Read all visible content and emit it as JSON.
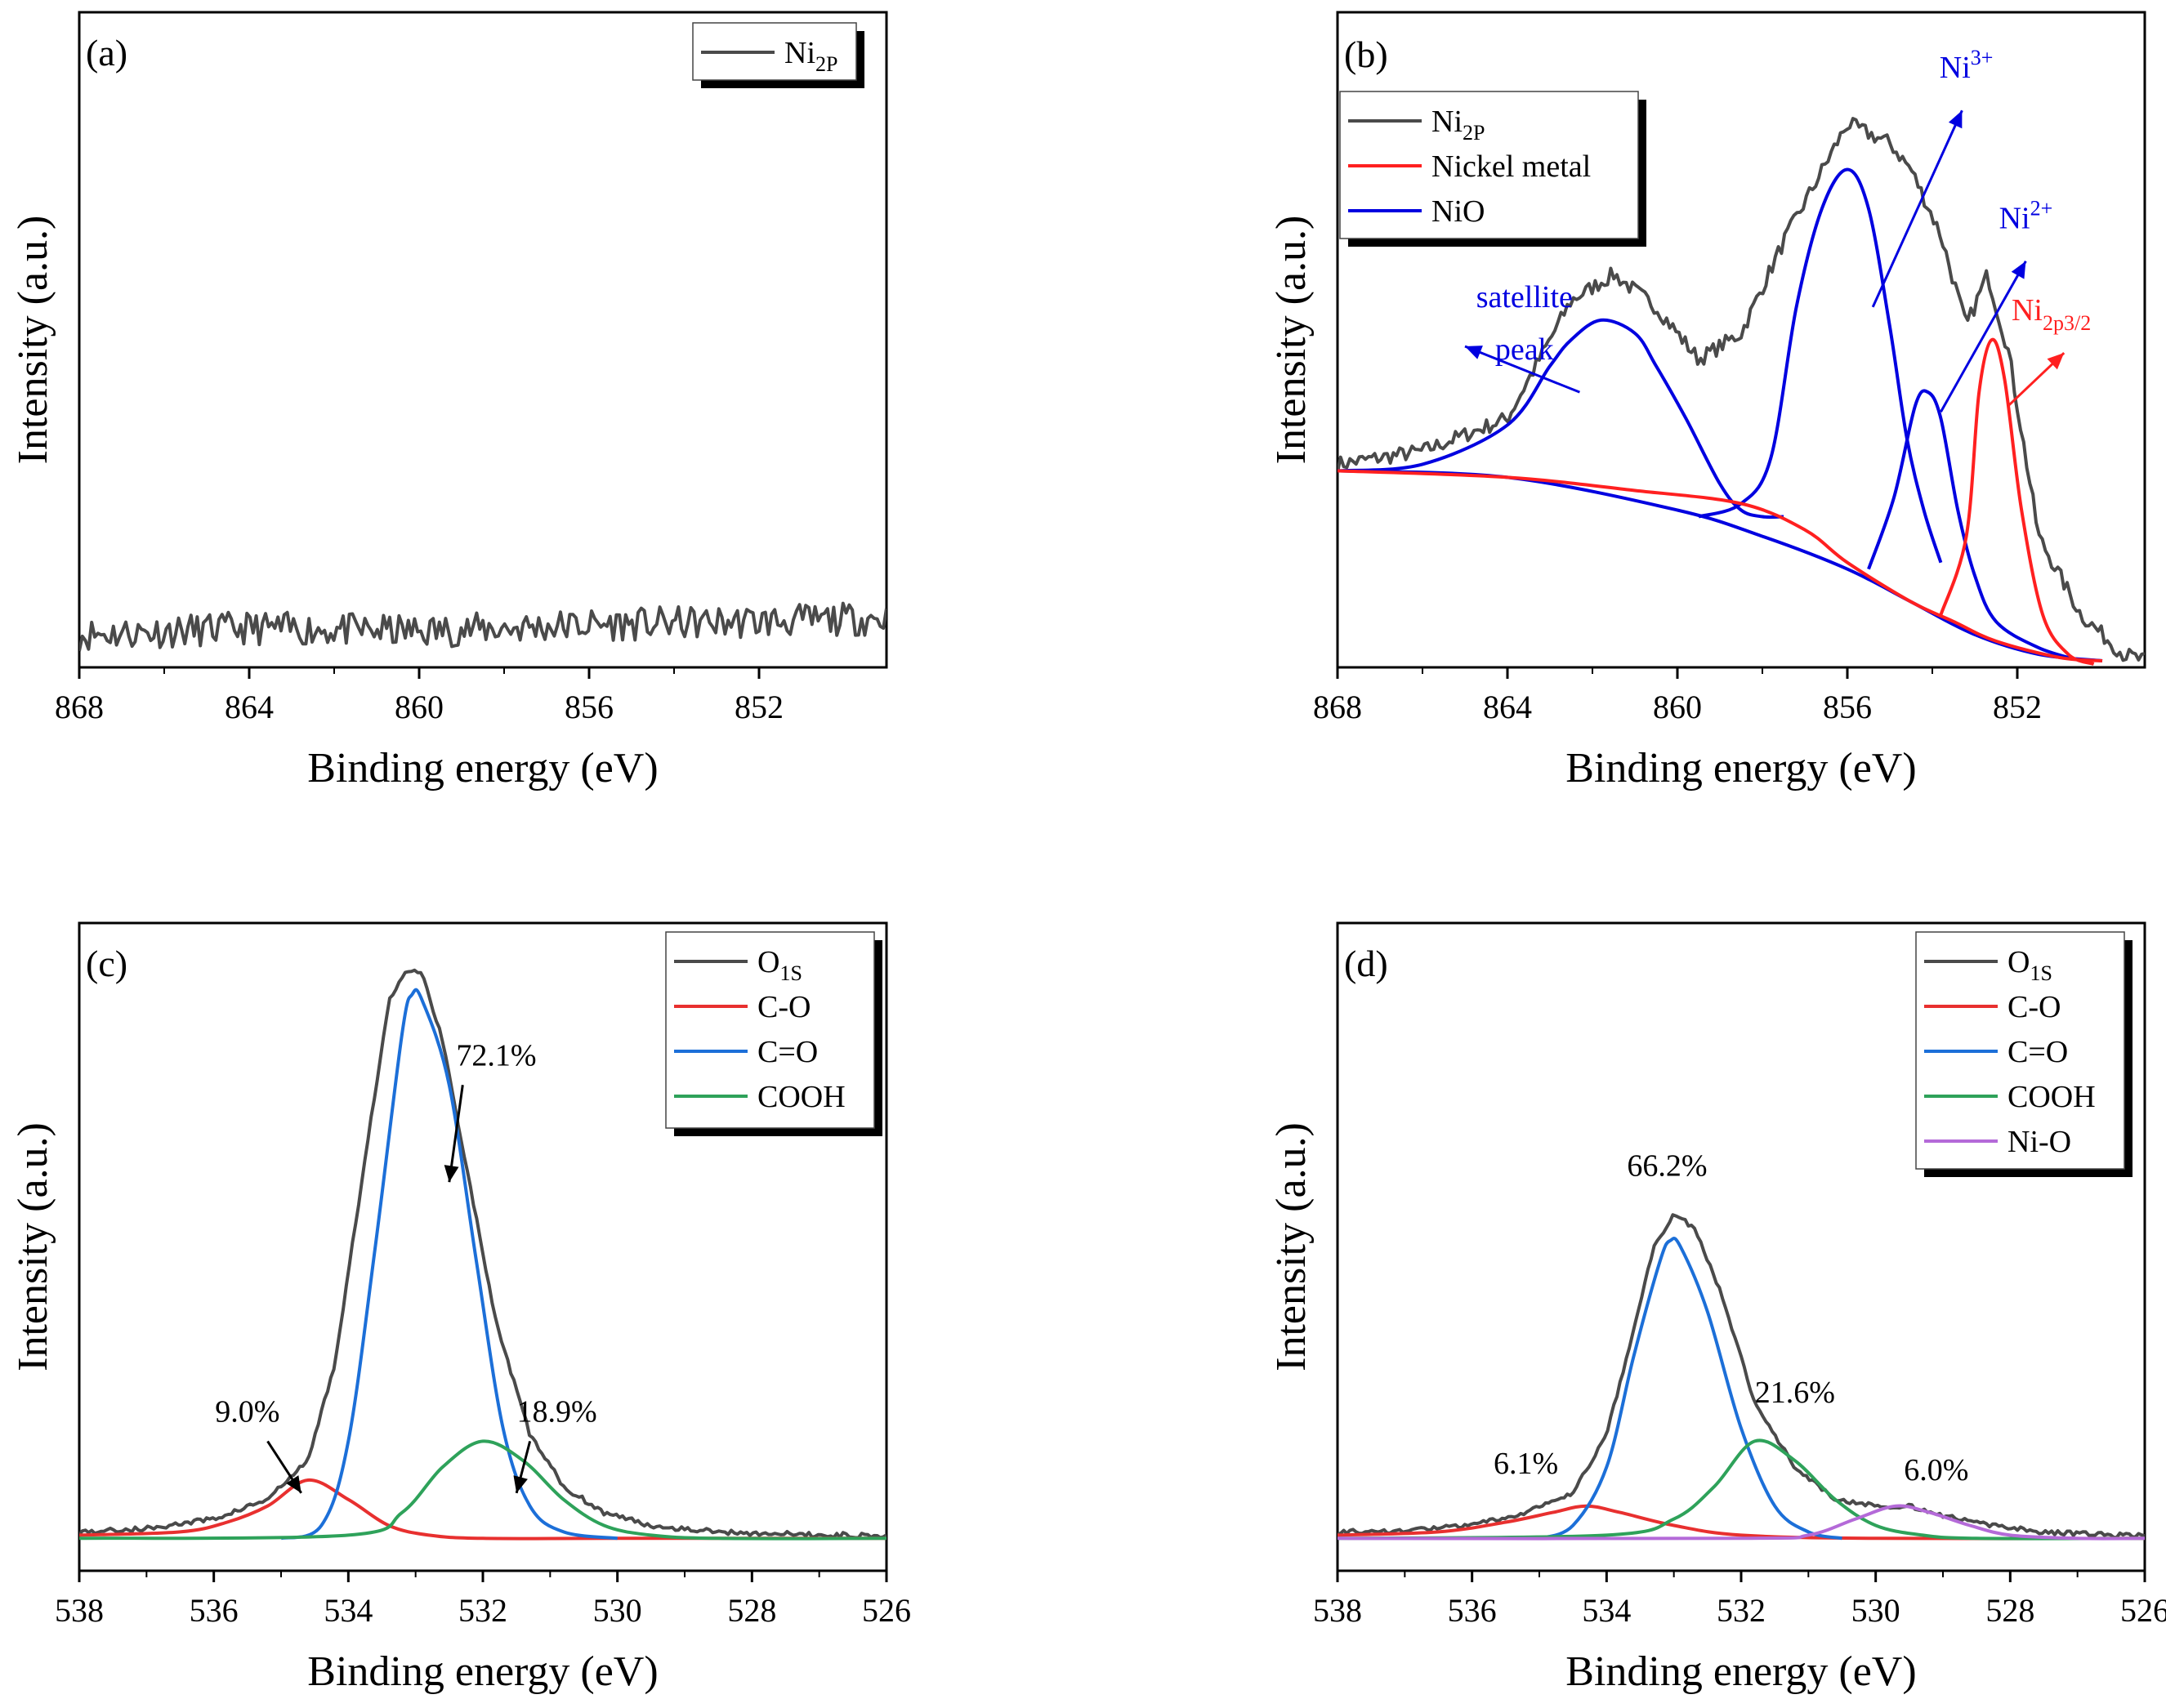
{
  "chart_data": [
    {
      "panel": "(a)",
      "type": "line",
      "xlabel": "Binding energy (eV)",
      "ylabel": "Intensity (a.u.)",
      "xlim": [
        868,
        849
      ],
      "xticks": [
        868,
        864,
        860,
        856,
        852
      ],
      "ylim": [
        0,
        100
      ],
      "legend": [
        {
          "label": "Ni",
          "sub": "2P",
          "color": "#4a4a4a"
        }
      ],
      "series": [
        {
          "name": "Ni2P",
          "color": "#4a4a4a",
          "stroke": 4,
          "noise": 2.5,
          "seed": 11,
          "x": [
            868,
            864,
            860,
            856,
            852,
            849
          ],
          "y": [
            5,
            6,
            5.5,
            6.5,
            7,
            7.5
          ]
        }
      ],
      "annotations": [],
      "arrows": []
    },
    {
      "panel": "(b)",
      "type": "line",
      "xlabel": "Binding energy (eV)",
      "ylabel": "Intensity (a.u.)",
      "xlim": [
        868,
        849
      ],
      "xticks": [
        868,
        864,
        860,
        856,
        852
      ],
      "ylim": [
        0,
        100
      ],
      "legend": [
        {
          "label": "Ni",
          "sub": "2P",
          "color": "#4a4a4a"
        },
        {
          "label": "Nickel metal",
          "sub": "",
          "color": "#ff2020"
        },
        {
          "label": "NiO",
          "sub": "",
          "color": "#0000e0"
        }
      ],
      "series": [
        {
          "name": "Ni2P",
          "color": "#4a4a4a",
          "stroke": 4,
          "noise": 1.2,
          "seed": 7,
          "x": [
            868,
            866,
            864,
            862.5,
            861.5,
            860.5,
            859.5,
            858.5,
            857.5,
            856,
            855,
            854.5,
            853.8,
            853.2,
            852.7,
            852.2,
            851.5,
            850.5,
            849.5,
            849
          ],
          "y": [
            31,
            33,
            38,
            56,
            60,
            55,
            47,
            51,
            65,
            83,
            80,
            76,
            66,
            52,
            60,
            48,
            20,
            8,
            2,
            1
          ]
        },
        {
          "name": "NiO satellite",
          "color": "#0000e0",
          "stroke": 4,
          "x": [
            868,
            866,
            864,
            863,
            862.5,
            861.8,
            861,
            860.5,
            859.8,
            859,
            858.5,
            858,
            857.5
          ],
          "y": [
            30,
            31,
            37,
            46,
            50,
            53,
            51,
            46,
            38,
            28,
            24,
            23,
            23
          ]
        },
        {
          "name": "NiO Ni3+ peak",
          "color": "#0000e0",
          "stroke": 4,
          "x": [
            859.5,
            858.5,
            857.8,
            857.2,
            856.6,
            856,
            855.5,
            855,
            854.6,
            854.2,
            853.8
          ],
          "y": [
            23,
            25,
            32,
            55,
            70,
            76,
            70,
            52,
            35,
            24,
            16
          ]
        },
        {
          "name": "NiO Ni2+ peak",
          "color": "#0000e0",
          "stroke": 4,
          "x": [
            855.5,
            854.9,
            854.4,
            854.1,
            853.8,
            853.4,
            853,
            852.5,
            851.5,
            850.5
          ],
          "y": [
            15,
            26,
            40,
            42,
            38,
            24,
            14,
            7,
            3,
            1
          ]
        },
        {
          "name": "NiO background",
          "color": "#0000e0",
          "stroke": 4,
          "x": [
            868,
            864,
            860,
            858,
            856,
            854.5,
            853,
            851.5,
            850
          ],
          "y": [
            30,
            29,
            24,
            20,
            15,
            10,
            5,
            2,
            1
          ]
        },
        {
          "name": "Nickel metal background",
          "color": "#ff2020",
          "stroke": 4,
          "x": [
            868,
            864,
            861,
            858.5,
            857,
            856,
            854.5,
            853.5,
            852.5,
            851,
            850
          ],
          "y": [
            30,
            29,
            27,
            25,
            21,
            16,
            10,
            7,
            4,
            1.5,
            1
          ]
        },
        {
          "name": "Nickel metal peak",
          "color": "#ff2020",
          "stroke": 4,
          "x": [
            853.8,
            853.2,
            852.9,
            852.6,
            852.3,
            851.9,
            851.4,
            850.8,
            850.2
          ],
          "y": [
            8,
            20,
            42,
            50,
            44,
            24,
            8,
            2,
            0.5
          ]
        }
      ],
      "annotations": [
        {
          "text": "satellite",
          "color": "#0000e0",
          "x": 863.6,
          "y": 55
        },
        {
          "text": "peak",
          "color": "#0000e0",
          "x": 863.6,
          "y": 47
        },
        {
          "text": "Ni",
          "sup": "3+",
          "color": "#0000e0",
          "x": 853.2,
          "y": 90
        },
        {
          "text": "Ni",
          "sup": "2+",
          "color": "#0000e0",
          "x": 851.8,
          "y": 67
        },
        {
          "text": "Ni",
          "sub": "2p3/2",
          "color": "#ff2020",
          "x": 851.2,
          "y": 53
        }
      ],
      "arrows": [
        {
          "color": "#0000e0",
          "x1": 862.3,
          "y1": 42,
          "x2": 865.0,
          "y2": 49
        },
        {
          "color": "#0000e0",
          "x1": 855.4,
          "y1": 55,
          "x2": 853.3,
          "y2": 85
        },
        {
          "color": "#0000e0",
          "x1": 853.8,
          "y1": 39,
          "x2": 851.8,
          "y2": 62
        },
        {
          "color": "#ff2020",
          "x1": 852.2,
          "y1": 40,
          "x2": 850.9,
          "y2": 48
        }
      ]
    },
    {
      "panel": "(c)",
      "type": "line",
      "xlabel": "Binding energy (eV)",
      "ylabel": "Intensity (a.u.)",
      "xlim": [
        538,
        526
      ],
      "xticks": [
        538,
        536,
        534,
        532,
        530,
        528,
        526
      ],
      "ylim": [
        0,
        100
      ],
      "legend": [
        {
          "label": "O",
          "sub": "1S",
          "color": "#4a4a4a"
        },
        {
          "label": "C-O",
          "sub": "",
          "color": "#e8302f"
        },
        {
          "label": "C=O",
          "sub": "",
          "color": "#1c6fd8"
        },
        {
          "label": "COOH",
          "sub": "",
          "color": "#2ea25a"
        }
      ],
      "series": [
        {
          "name": "O1S",
          "color": "#4a4a4a",
          "stroke": 4,
          "noise": 0.4,
          "seed": 5,
          "x": [
            538,
            537,
            536,
            535.2,
            534.6,
            534.2,
            533.8,
            533.4,
            533.1,
            532.9,
            532.6,
            532.2,
            531.8,
            531.3,
            530.8,
            530.2,
            529.5,
            528.5,
            527,
            526
          ],
          "y": [
            6,
            6.5,
            8,
            11,
            17,
            32,
            60,
            88,
            93,
            92,
            82,
            60,
            38,
            21,
            13,
            9,
            7,
            6,
            5.5,
            5.5
          ]
        },
        {
          "name": "C-O",
          "color": "#e8302f",
          "stroke": 4,
          "x": [
            538,
            536.5,
            535.8,
            535.2,
            534.6,
            534,
            533.4,
            532.8,
            532,
            530,
            526
          ],
          "y": [
            5.5,
            6,
            7.5,
            10,
            14,
            11,
            7,
            5.5,
            5,
            5,
            5
          ]
        },
        {
          "name": "C=O",
          "color": "#1c6fd8",
          "stroke": 4,
          "x": [
            535,
            534.4,
            534,
            533.6,
            533.2,
            533.05,
            532.9,
            532.5,
            532.1,
            531.7,
            531.3,
            530.8,
            530
          ],
          "y": [
            5,
            7,
            20,
            50,
            83,
            89,
            88,
            75,
            48,
            22,
            10,
            6,
            5
          ]
        },
        {
          "name": "COOH",
          "color": "#2ea25a",
          "stroke": 4,
          "x": [
            538,
            534,
            533.2,
            532.6,
            532,
            531.4,
            530.8,
            530.2,
            529.5,
            528.5,
            526
          ],
          "y": [
            5,
            5.5,
            9,
            16,
            20,
            17,
            11,
            7,
            5.5,
            5,
            5
          ]
        }
      ],
      "annotations": [
        {
          "text": "72.1%",
          "color": "#000000",
          "x": 531.8,
          "y": 78
        },
        {
          "text": "9.0%",
          "color": "#000000",
          "x": 535.5,
          "y": 23
        },
        {
          "text": "18.9%",
          "color": "#000000",
          "x": 530.9,
          "y": 23
        }
      ],
      "arrows": [
        {
          "color": "#000000",
          "x1": 532.3,
          "y1": 75,
          "x2": 532.5,
          "y2": 60
        },
        {
          "color": "#000000",
          "x1": 535.2,
          "y1": 20,
          "x2": 534.7,
          "y2": 12
        },
        {
          "color": "#000000",
          "x1": 531.3,
          "y1": 20,
          "x2": 531.5,
          "y2": 12
        }
      ]
    },
    {
      "panel": "(d)",
      "type": "line",
      "xlabel": "Binding energy (eV)",
      "ylabel": "Intensity (a.u.)",
      "xlim": [
        538,
        526
      ],
      "xticks": [
        538,
        536,
        534,
        532,
        530,
        528,
        526
      ],
      "ylim": [
        0,
        100
      ],
      "legend": [
        {
          "label": "O",
          "sub": "1S",
          "color": "#4a4a4a"
        },
        {
          "label": "C-O",
          "sub": "",
          "color": "#e8302f"
        },
        {
          "label": "C=O",
          "sub": "",
          "color": "#1c6fd8"
        },
        {
          "label": "COOH",
          "sub": "",
          "color": "#2ea25a"
        },
        {
          "label": "Ni-O",
          "sub": "",
          "color": "#b46ad8"
        }
      ],
      "series": [
        {
          "name": "O1S",
          "color": "#4a4a4a",
          "stroke": 4,
          "noise": 0.35,
          "seed": 9,
          "x": [
            538,
            537,
            536,
            535.2,
            534.5,
            534,
            533.6,
            533.3,
            533,
            532.7,
            532.3,
            531.8,
            531.2,
            530.6,
            530,
            529.5,
            529,
            528.3,
            527.5,
            526.5,
            526
          ],
          "y": [
            6,
            6.2,
            7,
            9,
            12,
            21,
            37,
            50,
            55,
            53,
            43,
            26,
            16,
            11,
            10,
            10,
            8.5,
            7,
            6,
            5.5,
            5.5
          ]
        },
        {
          "name": "C-O",
          "color": "#e8302f",
          "stroke": 4,
          "x": [
            538,
            536.5,
            535.5,
            534.8,
            534.3,
            533.8,
            533,
            532,
            530,
            526
          ],
          "y": [
            5.5,
            6,
            7.5,
            9,
            10,
            9,
            7,
            5.5,
            5,
            5
          ]
        },
        {
          "name": "C=O",
          "color": "#1c6fd8",
          "stroke": 4,
          "x": [
            535,
            534.5,
            534,
            533.6,
            533.2,
            533.05,
            532.9,
            532.5,
            532,
            531.5,
            531,
            530.5
          ],
          "y": [
            5,
            7,
            16,
            33,
            48,
            51,
            50,
            40,
            22,
            10,
            6,
            5
          ]
        },
        {
          "name": "COOH",
          "color": "#2ea25a",
          "stroke": 4,
          "x": [
            538,
            534,
            533,
            532.4,
            531.8,
            531.2,
            530.6,
            530,
            529.3,
            528.5,
            526
          ],
          "y": [
            5,
            5.5,
            8,
            13,
            20,
            17,
            11,
            7,
            5.5,
            5,
            5
          ]
        },
        {
          "name": "Ni-O",
          "color": "#b46ad8",
          "stroke": 4,
          "x": [
            538,
            532,
            531,
            530.3,
            529.7,
            529.2,
            528.6,
            528,
            527,
            526
          ],
          "y": [
            5,
            5,
            5.5,
            8,
            10,
            9,
            7,
            5.5,
            5,
            5
          ]
        }
      ],
      "annotations": [
        {
          "text": "66.2%",
          "color": "#000000",
          "x": 533.1,
          "y": 61
        },
        {
          "text": "6.1%",
          "color": "#000000",
          "x": 535.2,
          "y": 15
        },
        {
          "text": "21.6%",
          "color": "#000000",
          "x": 531.2,
          "y": 26
        },
        {
          "text": "6.0%",
          "color": "#000000",
          "x": 529.1,
          "y": 14
        }
      ],
      "arrows": []
    }
  ]
}
